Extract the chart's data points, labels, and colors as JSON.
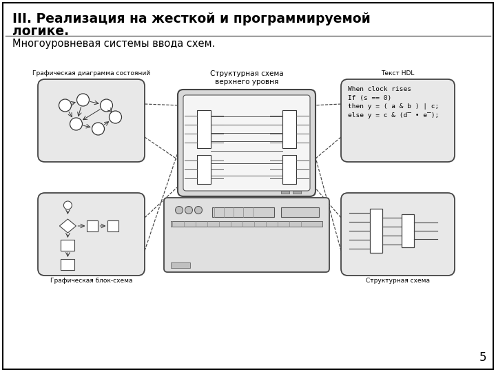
{
  "title_line1": "III. Реализация на жесткой и программируемой",
  "title_line2": "логике.",
  "subtitle": "Многоуровневая системы ввода схем.",
  "page_number": "5",
  "background_color": "#ffffff",
  "label_top_left": "Графическая диаграмма состояний",
  "label_top_right": "Текст HDL",
  "label_bottom_left": "Графическая блок-схема",
  "label_bottom_right": "Структурная схема",
  "label_center_line1": "Структурная схема",
  "label_center_line2": "верхнего уровня",
  "hdl_line1": "When clock rises",
  "hdl_line2": "If (s == 0)",
  "hdl_line3": "then y = ( a & b ) | c;",
  "hdl_line4": "else y = c & (d̅ • e̅);",
  "box_fill": "#e8e8e8",
  "box_edge": "#444444",
  "screen_fill": "#f0f0f0",
  "unit_fill": "#e0e0e0"
}
